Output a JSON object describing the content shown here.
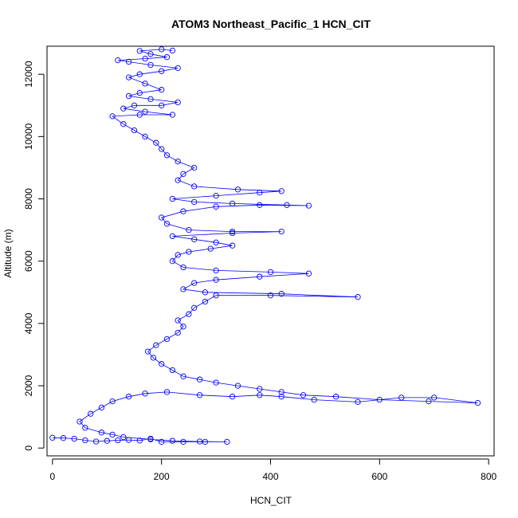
{
  "chart_data": {
    "type": "scatter",
    "title": "ATOM3 Northeast_Pacific_1 HCN_CIT",
    "xlabel": "HCN_CIT",
    "ylabel": "Altitude (m)",
    "xlim": [
      -10,
      810
    ],
    "ylim": [
      -250,
      12900
    ],
    "x_ticks": [
      0,
      200,
      400,
      600,
      800
    ],
    "y_ticks": [
      0,
      2000,
      4000,
      6000,
      8000,
      10000,
      12000
    ],
    "x_tick_labels": [
      "0",
      "200",
      "400",
      "600",
      "800"
    ],
    "y_tick_labels": [
      "0",
      "2000",
      "4000",
      "6000",
      "8000",
      "10000",
      "12000"
    ],
    "marker": "open-circle",
    "connected": true,
    "series_color": "#0000ff",
    "series": [
      {
        "points": [
          [
            0,
            330
          ],
          [
            20,
            320
          ],
          [
            40,
            300
          ],
          [
            60,
            250
          ],
          [
            80,
            210
          ],
          [
            100,
            230
          ],
          [
            120,
            250
          ],
          [
            140,
            260
          ],
          [
            160,
            240
          ],
          [
            180,
            300
          ],
          [
            200,
            200
          ],
          [
            240,
            200
          ],
          [
            280,
            200
          ],
          [
            320,
            200
          ],
          [
            270,
            210
          ],
          [
            220,
            230
          ],
          [
            180,
            280
          ],
          [
            130,
            350
          ],
          [
            110,
            430
          ],
          [
            90,
            500
          ],
          [
            60,
            650
          ],
          [
            50,
            850
          ],
          [
            70,
            1100
          ],
          [
            90,
            1300
          ],
          [
            110,
            1500
          ],
          [
            140,
            1650
          ],
          [
            170,
            1750
          ],
          [
            210,
            1800
          ],
          [
            270,
            1700
          ],
          [
            330,
            1650
          ],
          [
            380,
            1700
          ],
          [
            420,
            1650
          ],
          [
            480,
            1550
          ],
          [
            560,
            1480
          ],
          [
            640,
            1620
          ],
          [
            700,
            1620
          ],
          [
            780,
            1450
          ],
          [
            690,
            1500
          ],
          [
            600,
            1550
          ],
          [
            520,
            1650
          ],
          [
            460,
            1700
          ],
          [
            420,
            1800
          ],
          [
            380,
            1900
          ],
          [
            340,
            2000
          ],
          [
            300,
            2100
          ],
          [
            270,
            2200
          ],
          [
            240,
            2300
          ],
          [
            220,
            2500
          ],
          [
            200,
            2700
          ],
          [
            185,
            2900
          ],
          [
            175,
            3100
          ],
          [
            190,
            3300
          ],
          [
            210,
            3500
          ],
          [
            230,
            3700
          ],
          [
            240,
            3900
          ],
          [
            230,
            4100
          ],
          [
            250,
            4300
          ],
          [
            260,
            4500
          ],
          [
            280,
            4700
          ],
          [
            300,
            4900
          ],
          [
            400,
            4900
          ],
          [
            560,
            4850
          ],
          [
            420,
            4950
          ],
          [
            280,
            5000
          ],
          [
            240,
            5100
          ],
          [
            260,
            5300
          ],
          [
            300,
            5400
          ],
          [
            380,
            5500
          ],
          [
            470,
            5600
          ],
          [
            400,
            5650
          ],
          [
            300,
            5700
          ],
          [
            240,
            5800
          ],
          [
            220,
            6000
          ],
          [
            230,
            6200
          ],
          [
            250,
            6300
          ],
          [
            290,
            6400
          ],
          [
            330,
            6500
          ],
          [
            300,
            6600
          ],
          [
            260,
            6700
          ],
          [
            220,
            6800
          ],
          [
            330,
            6900
          ],
          [
            420,
            6950
          ],
          [
            330,
            6950
          ],
          [
            250,
            7000
          ],
          [
            210,
            7200
          ],
          [
            200,
            7400
          ],
          [
            240,
            7600
          ],
          [
            300,
            7750
          ],
          [
            380,
            7800
          ],
          [
            470,
            7780
          ],
          [
            430,
            7800
          ],
          [
            330,
            7850
          ],
          [
            260,
            7900
          ],
          [
            220,
            8000
          ],
          [
            300,
            8100
          ],
          [
            380,
            8200
          ],
          [
            420,
            8250
          ],
          [
            340,
            8300
          ],
          [
            260,
            8400
          ],
          [
            230,
            8600
          ],
          [
            240,
            8800
          ],
          [
            260,
            9000
          ],
          [
            230,
            9200
          ],
          [
            210,
            9400
          ],
          [
            200,
            9600
          ],
          [
            190,
            9800
          ],
          [
            170,
            10000
          ],
          [
            150,
            10200
          ],
          [
            130,
            10400
          ],
          [
            110,
            10650
          ],
          [
            160,
            10700
          ],
          [
            220,
            10700
          ],
          [
            170,
            10800
          ],
          [
            130,
            10900
          ],
          [
            150,
            11000
          ],
          [
            200,
            11000
          ],
          [
            230,
            11100
          ],
          [
            180,
            11200
          ],
          [
            140,
            11300
          ],
          [
            160,
            11400
          ],
          [
            200,
            11500
          ],
          [
            170,
            11700
          ],
          [
            140,
            11900
          ],
          [
            160,
            12000
          ],
          [
            200,
            12100
          ],
          [
            230,
            12200
          ],
          [
            180,
            12300
          ],
          [
            140,
            12400
          ],
          [
            120,
            12450
          ],
          [
            170,
            12500
          ],
          [
            210,
            12550
          ],
          [
            180,
            12650
          ],
          [
            160,
            12750
          ],
          [
            200,
            12800
          ],
          [
            220,
            12760
          ]
        ]
      }
    ]
  }
}
